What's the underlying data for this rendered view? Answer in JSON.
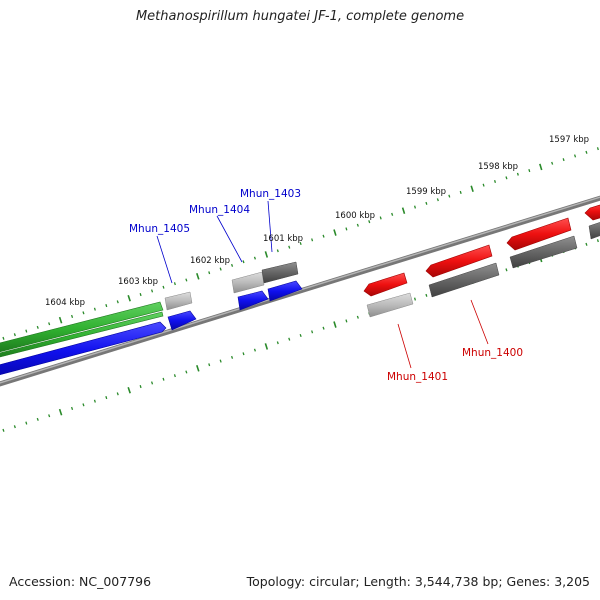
{
  "title": "Methanospirillum hungatei JF-1, complete genome",
  "footer": {
    "accession": "Accession: NC_007796",
    "summary": "Topology: circular; Length: 3,544,738 bp; Genes: 3,205"
  },
  "colors": {
    "forward_strand_gene": "#1010ee",
    "reverse_strand_gene": "#ee1010",
    "rna_gene": "#30b030",
    "other_gene_light": "#b8b8b8",
    "other_gene_dark": "#666666",
    "tick": "#2a8a2a",
    "backbone": "#888888"
  },
  "ticks": [
    {
      "label": "1597 kbp"
    },
    {
      "label": "1598 kbp"
    },
    {
      "label": "1599 kbp"
    },
    {
      "label": "1600 kbp"
    },
    {
      "label": "1601 kbp"
    },
    {
      "label": "1602 kbp"
    },
    {
      "label": "1603 kbp"
    },
    {
      "label": "1604 kbp"
    }
  ],
  "gene_labels": [
    {
      "name": "Mhun_1403",
      "color": "#0000cc"
    },
    {
      "name": "Mhun_1404",
      "color": "#0000cc"
    },
    {
      "name": "Mhun_1405",
      "color": "#0000cc"
    },
    {
      "name": "Mhun_1400",
      "color": "#cc0000"
    },
    {
      "name": "Mhun_1401",
      "color": "#cc0000"
    }
  ]
}
